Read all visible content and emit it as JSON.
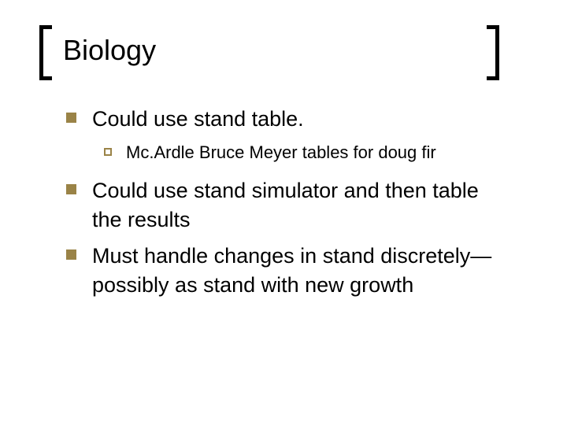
{
  "slide": {
    "title": "Biology",
    "bg_color": "#ffffff",
    "title_fontsize": 36,
    "body_l1_fontsize": 27,
    "body_l2_fontsize": 22,
    "bullet_color": "#9a8347",
    "bracket_color": "#000000",
    "items": [
      {
        "text": "Could use stand table.",
        "sub": [
          {
            "text": "Mc.Ardle Bruce Meyer tables for doug fir"
          }
        ]
      },
      {
        "text": "Could use stand simulator and then table the results",
        "sub": []
      },
      {
        "text": "Must handle changes in stand discretely—possibly as stand with new growth",
        "sub": []
      }
    ]
  }
}
